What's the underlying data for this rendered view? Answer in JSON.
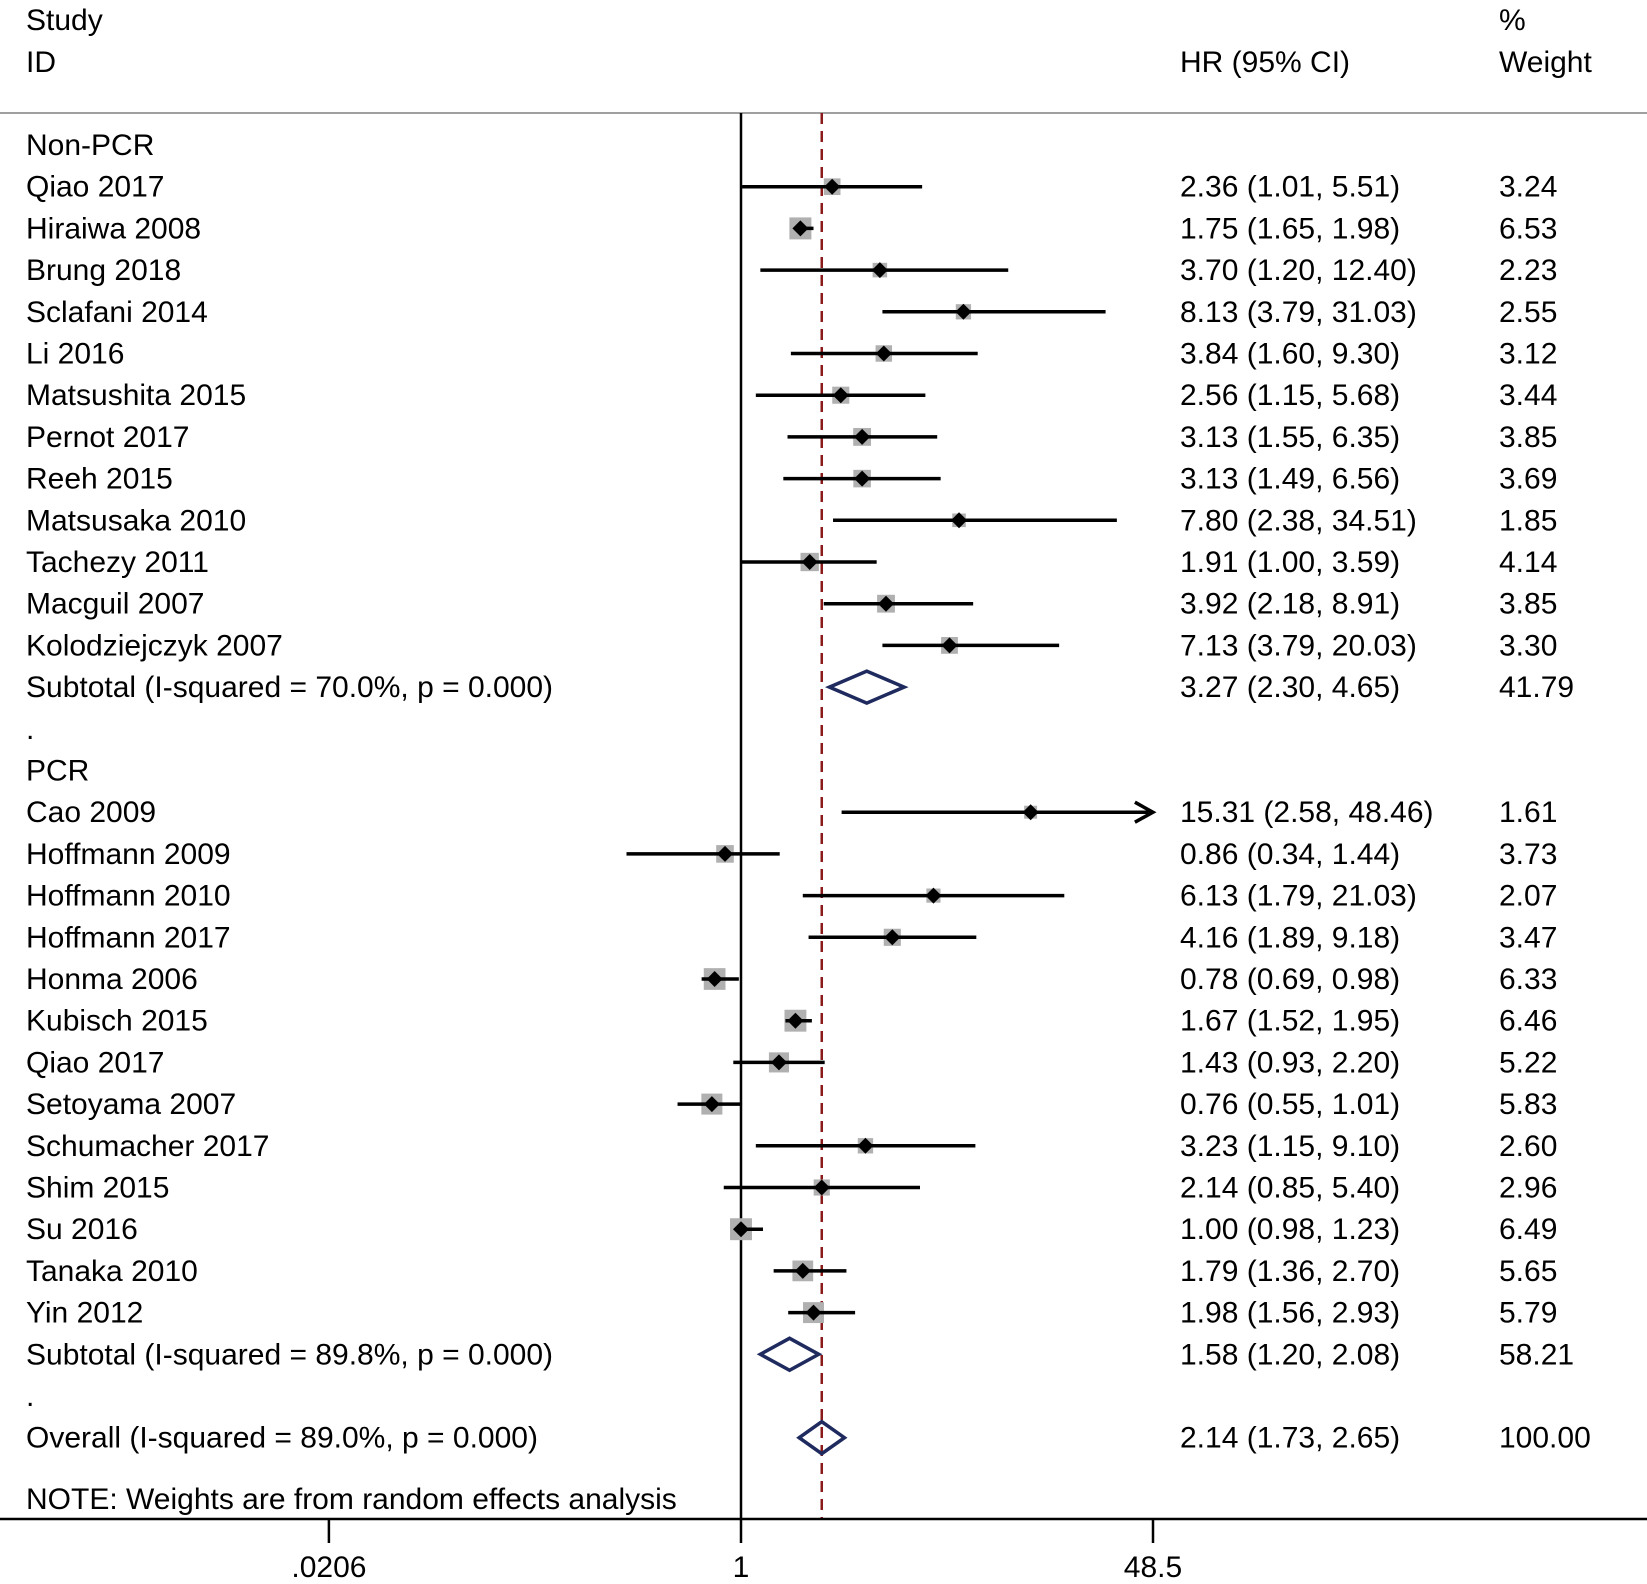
{
  "header": {
    "study_line1": "Study",
    "study_line2": "ID",
    "hr_header": "HR (95% CI)",
    "weight_line1": "%",
    "weight_line2": "Weight"
  },
  "note": "NOTE: Weights are from random effects analysis",
  "colors": {
    "text": "#000000",
    "summary_diamond": "#1f2a5e",
    "overall_line": "#8b1a1a",
    "weight_box": "#b0b0b0"
  },
  "chart_data": {
    "type": "forest",
    "scale": "log",
    "effect_measure": "HR",
    "null_value": 1,
    "overall_line_value": 2.14,
    "x_ticks": [
      {
        "value": 0.0206,
        "label": ".0206"
      },
      {
        "value": 1,
        "label": "1"
      },
      {
        "value": 48.5,
        "label": "48.5"
      }
    ],
    "x_range": [
      0.0206,
      48.5
    ],
    "rows": [
      {
        "kind": "group",
        "label": "Non-PCR"
      },
      {
        "kind": "study",
        "label": "Qiao 2017",
        "hr": 2.36,
        "lo": 1.01,
        "hi": 5.51,
        "hr_text": "2.36 (1.01, 5.51)",
        "weight": 3.24,
        "weight_text": "3.24"
      },
      {
        "kind": "study",
        "label": "Hiraiwa 2008",
        "hr": 1.75,
        "lo": 1.65,
        "hi": 1.98,
        "hr_text": "1.75 (1.65, 1.98)",
        "weight": 6.53,
        "weight_text": "6.53"
      },
      {
        "kind": "study",
        "label": "Brung 2018",
        "hr": 3.7,
        "lo": 1.2,
        "hi": 12.4,
        "hr_text": "3.70 (1.20, 12.40)",
        "weight": 2.23,
        "weight_text": "2.23"
      },
      {
        "kind": "study",
        "label": "Sclafani 2014",
        "hr": 8.13,
        "lo": 3.79,
        "hi": 31.03,
        "hr_text": "8.13 (3.79, 31.03)",
        "weight": 2.55,
        "weight_text": "2.55"
      },
      {
        "kind": "study",
        "label": "Li 2016",
        "hr": 3.84,
        "lo": 1.6,
        "hi": 9.3,
        "hr_text": "3.84 (1.60, 9.30)",
        "weight": 3.12,
        "weight_text": "3.12"
      },
      {
        "kind": "study",
        "label": "Matsushita 2015",
        "hr": 2.56,
        "lo": 1.15,
        "hi": 5.68,
        "hr_text": "2.56 (1.15, 5.68)",
        "weight": 3.44,
        "weight_text": "3.44"
      },
      {
        "kind": "study",
        "label": "Pernot 2017",
        "hr": 3.13,
        "lo": 1.55,
        "hi": 6.35,
        "hr_text": "3.13 (1.55, 6.35)",
        "weight": 3.85,
        "weight_text": "3.85"
      },
      {
        "kind": "study",
        "label": "Reeh 2015",
        "hr": 3.13,
        "lo": 1.49,
        "hi": 6.56,
        "hr_text": "3.13 (1.49, 6.56)",
        "weight": 3.69,
        "weight_text": "3.69"
      },
      {
        "kind": "study",
        "label": "Matsusaka 2010",
        "hr": 7.8,
        "lo": 2.38,
        "hi": 34.51,
        "hr_text": "7.80 (2.38, 34.51)",
        "weight": 1.85,
        "weight_text": "1.85"
      },
      {
        "kind": "study",
        "label": "Tachezy 2011",
        "hr": 1.91,
        "lo": 1.0,
        "hi": 3.59,
        "hr_text": "1.91 (1.00, 3.59)",
        "weight": 4.14,
        "weight_text": "4.14"
      },
      {
        "kind": "study",
        "label": "Macguil 2007",
        "hr": 3.92,
        "lo": 2.18,
        "hi": 8.91,
        "hr_text": "3.92 (2.18, 8.91)",
        "weight": 3.85,
        "weight_text": "3.85"
      },
      {
        "kind": "study",
        "label": "Kolodziejczyk 2007",
        "hr": 7.13,
        "lo": 3.79,
        "hi": 20.03,
        "hr_text": "7.13 (3.79, 20.03)",
        "weight": 3.3,
        "weight_text": "3.30"
      },
      {
        "kind": "subtotal",
        "label": "Subtotal  (I-squared = 70.0%, p = 0.000)",
        "hr": 3.27,
        "lo": 2.3,
        "hi": 4.65,
        "hr_text": "3.27 (2.30, 4.65)",
        "weight": 41.79,
        "weight_text": "41.79"
      },
      {
        "kind": "spacer",
        "label": "."
      },
      {
        "kind": "group",
        "label": "PCR"
      },
      {
        "kind": "study",
        "label": "Cao 2009",
        "hr": 15.31,
        "lo": 2.58,
        "hi": 48.46,
        "hr_text": "15.31 (2.58, 48.46)",
        "weight": 1.61,
        "weight_text": "1.61",
        "arrow_right": true
      },
      {
        "kind": "study",
        "label": "Hoffmann 2009",
        "hr": 0.86,
        "lo": 0.34,
        "hi": 1.44,
        "hr_text": "0.86 (0.34, 1.44)",
        "weight": 3.73,
        "weight_text": "3.73"
      },
      {
        "kind": "study",
        "label": "Hoffmann 2010",
        "hr": 6.13,
        "lo": 1.79,
        "hi": 21.03,
        "hr_text": "6.13 (1.79, 21.03)",
        "weight": 2.07,
        "weight_text": "2.07"
      },
      {
        "kind": "study",
        "label": "Hoffmann 2017",
        "hr": 4.16,
        "lo": 1.89,
        "hi": 9.18,
        "hr_text": "4.16 (1.89, 9.18)",
        "weight": 3.47,
        "weight_text": "3.47"
      },
      {
        "kind": "study",
        "label": "Honma 2006",
        "hr": 0.78,
        "lo": 0.69,
        "hi": 0.98,
        "hr_text": "0.78 (0.69, 0.98)",
        "weight": 6.33,
        "weight_text": "6.33"
      },
      {
        "kind": "study",
        "label": "Kubisch 2015",
        "hr": 1.67,
        "lo": 1.52,
        "hi": 1.95,
        "hr_text": "1.67 (1.52, 1.95)",
        "weight": 6.46,
        "weight_text": "6.46"
      },
      {
        "kind": "study",
        "label": "Qiao 2017",
        "hr": 1.43,
        "lo": 0.93,
        "hi": 2.2,
        "hr_text": "1.43 (0.93, 2.20)",
        "weight": 5.22,
        "weight_text": "5.22"
      },
      {
        "kind": "study",
        "label": "Setoyama 2007",
        "hr": 0.76,
        "lo": 0.55,
        "hi": 1.01,
        "hr_text": "0.76 (0.55, 1.01)",
        "weight": 5.83,
        "weight_text": "5.83"
      },
      {
        "kind": "study",
        "label": "Schumacher 2017",
        "hr": 3.23,
        "lo": 1.15,
        "hi": 9.1,
        "hr_text": "3.23 (1.15, 9.10)",
        "weight": 2.6,
        "weight_text": "2.60"
      },
      {
        "kind": "study",
        "label": "Shim 2015",
        "hr": 2.14,
        "lo": 0.85,
        "hi": 5.4,
        "hr_text": "2.14 (0.85, 5.40)",
        "weight": 2.96,
        "weight_text": "2.96"
      },
      {
        "kind": "study",
        "label": "Su 2016",
        "hr": 1.0,
        "lo": 0.98,
        "hi": 1.23,
        "hr_text": "1.00 (0.98, 1.23)",
        "weight": 6.49,
        "weight_text": "6.49"
      },
      {
        "kind": "study",
        "label": "Tanaka 2010",
        "hr": 1.79,
        "lo": 1.36,
        "hi": 2.7,
        "hr_text": "1.79 (1.36, 2.70)",
        "weight": 5.65,
        "weight_text": "5.65"
      },
      {
        "kind": "study",
        "label": "Yin 2012",
        "hr": 1.98,
        "lo": 1.56,
        "hi": 2.93,
        "hr_text": "1.98 (1.56, 2.93)",
        "weight": 5.79,
        "weight_text": "5.79"
      },
      {
        "kind": "subtotal",
        "label": "Subtotal  (I-squared = 89.8%, p = 0.000)",
        "hr": 1.58,
        "lo": 1.2,
        "hi": 2.08,
        "hr_text": "1.58 (1.20, 2.08)",
        "weight": 58.21,
        "weight_text": "58.21"
      },
      {
        "kind": "spacer",
        "label": "."
      },
      {
        "kind": "overall",
        "label": "Overall  (I-squared = 89.0%, p = 0.000)",
        "hr": 2.14,
        "lo": 1.73,
        "hi": 2.65,
        "hr_text": "2.14 (1.73, 2.65)",
        "weight": 100.0,
        "weight_text": "100.00"
      }
    ]
  }
}
